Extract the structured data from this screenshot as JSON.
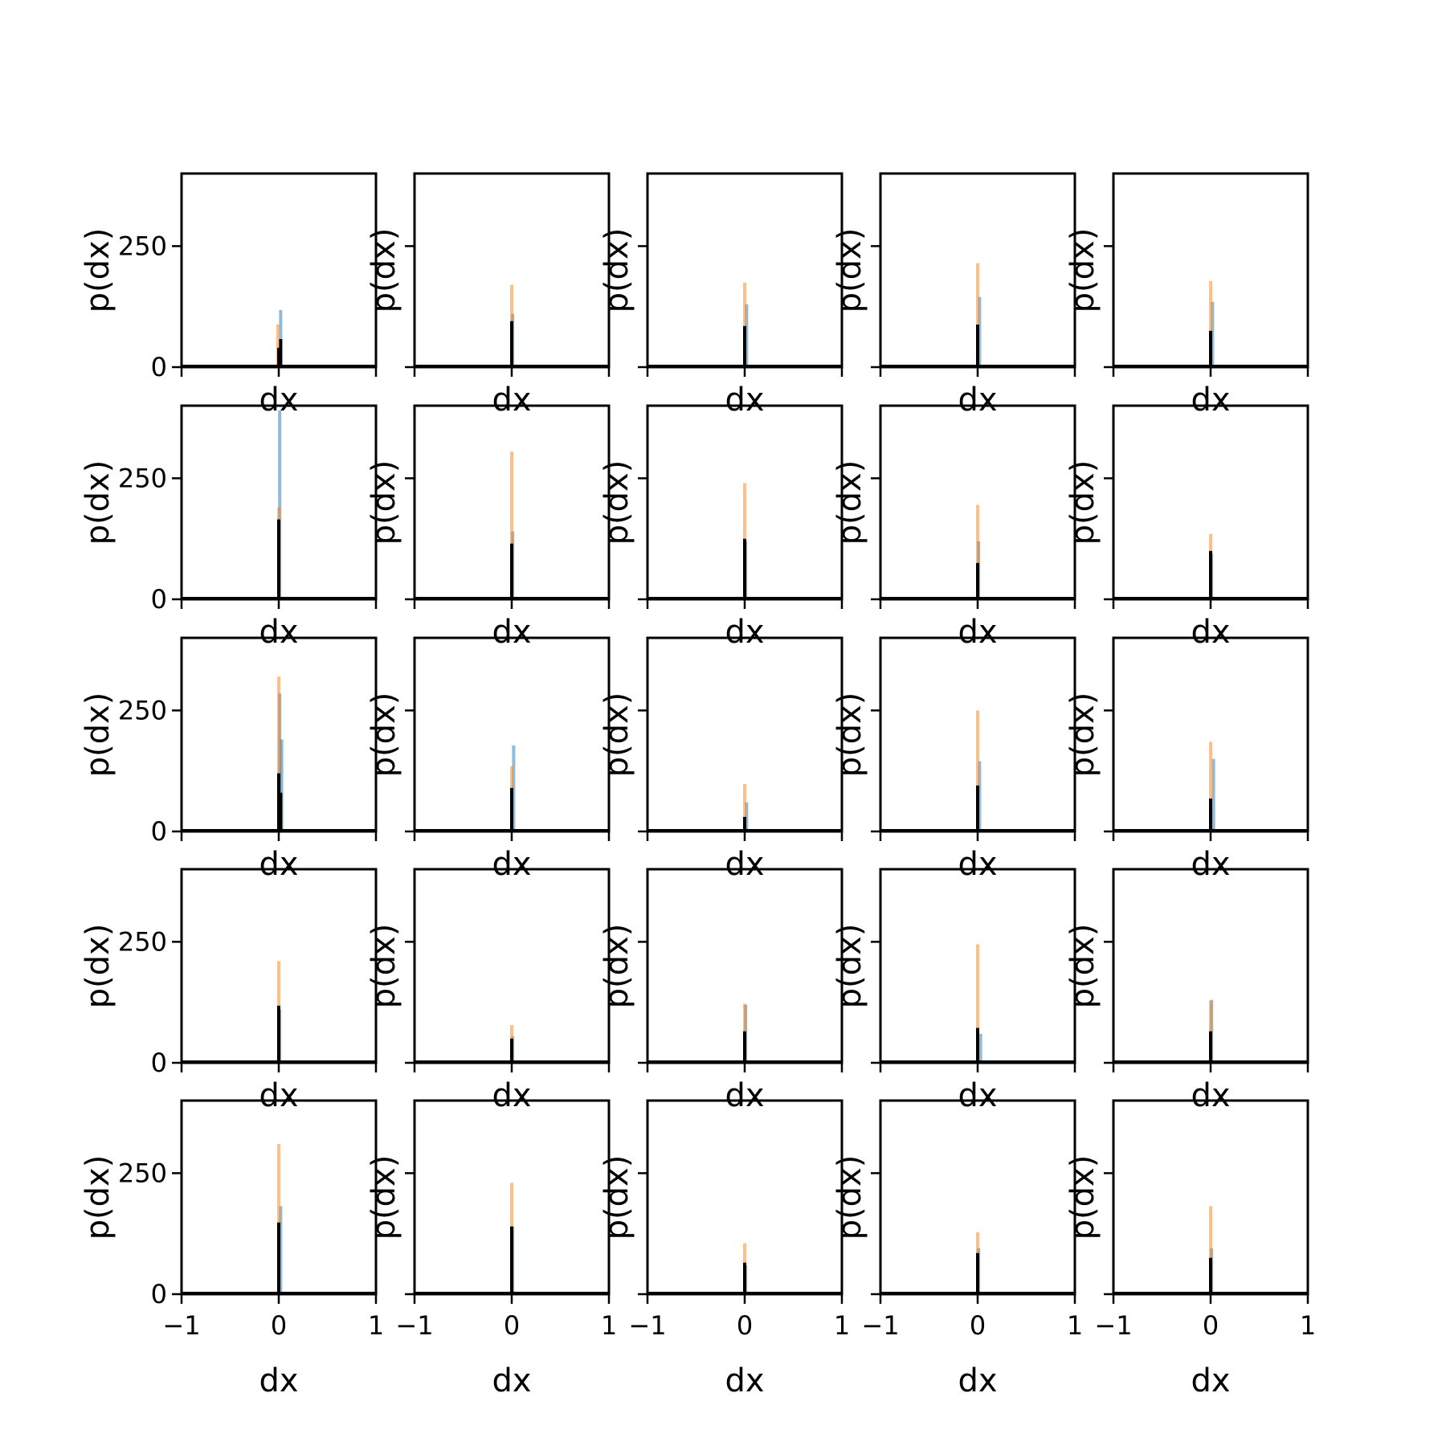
{
  "chart_data": {
    "type": "bar",
    "layout": "5x5 grid of histograms",
    "xlabel": "dx",
    "ylabel": "p(dx)",
    "xlim": [
      -1,
      1
    ],
    "ylim": [
      0,
      400
    ],
    "xticks": [
      -1,
      0,
      1
    ],
    "xtick_labels": [
      "−1",
      "0",
      "1"
    ],
    "yticks": [
      0,
      250
    ],
    "ytick_labels": [
      "0",
      "250"
    ],
    "colors": {
      "series_blue": "#1f77b4",
      "series_orange": "#ff7f0e",
      "series_black": "#000000"
    },
    "series_names": [
      "blue",
      "orange",
      "black"
    ],
    "panels": [
      {
        "row": 0,
        "col": 0,
        "blue": [
          [
            0.02,
            118
          ]
        ],
        "orange": [
          [
            -0.01,
            88
          ],
          [
            0.0,
            35
          ]
        ],
        "black": [
          [
            0.0,
            40
          ],
          [
            0.02,
            58
          ]
        ]
      },
      {
        "row": 0,
        "col": 1,
        "blue": [
          [
            0.01,
            110
          ]
        ],
        "orange": [
          [
            0.0,
            170
          ]
        ],
        "black": [
          [
            0.0,
            95
          ]
        ]
      },
      {
        "row": 0,
        "col": 2,
        "blue": [
          [
            0.02,
            130
          ]
        ],
        "orange": [
          [
            0.0,
            175
          ]
        ],
        "black": [
          [
            0.0,
            85
          ]
        ]
      },
      {
        "row": 0,
        "col": 3,
        "blue": [
          [
            0.02,
            145
          ]
        ],
        "orange": [
          [
            0.0,
            215
          ]
        ],
        "black": [
          [
            0.0,
            88
          ]
        ]
      },
      {
        "row": 0,
        "col": 4,
        "blue": [
          [
            0.02,
            135
          ]
        ],
        "orange": [
          [
            0.0,
            178
          ]
        ],
        "black": [
          [
            0.0,
            75
          ]
        ]
      },
      {
        "row": 1,
        "col": 0,
        "blue": [
          [
            0.01,
            390
          ]
        ],
        "orange": [
          [
            0.0,
            190
          ]
        ],
        "black": [
          [
            0.0,
            165
          ]
        ]
      },
      {
        "row": 1,
        "col": 1,
        "blue": [
          [
            0.01,
            140
          ]
        ],
        "orange": [
          [
            0.0,
            305
          ]
        ],
        "black": [
          [
            0.0,
            115
          ]
        ]
      },
      {
        "row": 1,
        "col": 2,
        "blue": [
          [
            0.01,
            120
          ]
        ],
        "orange": [
          [
            0.0,
            240
          ]
        ],
        "black": [
          [
            0.0,
            125
          ]
        ]
      },
      {
        "row": 1,
        "col": 3,
        "blue": [
          [
            0.01,
            120
          ]
        ],
        "orange": [
          [
            0.0,
            195
          ]
        ],
        "black": [
          [
            0.0,
            75
          ]
        ]
      },
      {
        "row": 1,
        "col": 4,
        "blue": [
          [
            0.01,
            95
          ]
        ],
        "orange": [
          [
            0.0,
            135
          ]
        ],
        "black": [
          [
            0.0,
            100
          ]
        ]
      },
      {
        "row": 2,
        "col": 0,
        "blue": [
          [
            0.01,
            285
          ],
          [
            0.03,
            190
          ]
        ],
        "orange": [
          [
            0.0,
            320
          ]
        ],
        "black": [
          [
            0.0,
            120
          ],
          [
            0.02,
            80
          ]
        ]
      },
      {
        "row": 2,
        "col": 1,
        "blue": [
          [
            0.02,
            178
          ]
        ],
        "orange": [
          [
            0.0,
            135
          ]
        ],
        "black": [
          [
            0.0,
            90
          ]
        ]
      },
      {
        "row": 2,
        "col": 2,
        "blue": [
          [
            0.02,
            60
          ]
        ],
        "orange": [
          [
            0.0,
            98
          ]
        ],
        "black": [
          [
            0.0,
            30
          ]
        ]
      },
      {
        "row": 2,
        "col": 3,
        "blue": [
          [
            0.02,
            145
          ]
        ],
        "orange": [
          [
            0.0,
            250
          ]
        ],
        "black": [
          [
            0.0,
            95
          ]
        ]
      },
      {
        "row": 2,
        "col": 4,
        "blue": [
          [
            0.03,
            150
          ]
        ],
        "orange": [
          [
            0.0,
            185
          ]
        ],
        "black": [
          [
            0.0,
            68
          ]
        ]
      },
      {
        "row": 3,
        "col": 0,
        "blue": [
          [
            0.01,
            110
          ]
        ],
        "orange": [
          [
            0.0,
            210
          ]
        ],
        "black": [
          [
            0.0,
            118
          ]
        ]
      },
      {
        "row": 3,
        "col": 1,
        "blue": [
          [
            0.01,
            55
          ]
        ],
        "orange": [
          [
            0.0,
            78
          ]
        ],
        "black": [
          [
            0.0,
            50
          ]
        ]
      },
      {
        "row": 3,
        "col": 2,
        "blue": [
          [
            0.01,
            120
          ]
        ],
        "orange": [
          [
            0.0,
            122
          ]
        ],
        "black": [
          [
            0.0,
            65
          ]
        ]
      },
      {
        "row": 3,
        "col": 3,
        "blue": [
          [
            0.03,
            60
          ]
        ],
        "orange": [
          [
            0.0,
            245
          ]
        ],
        "black": [
          [
            0.0,
            72
          ]
        ]
      },
      {
        "row": 3,
        "col": 4,
        "blue": [
          [
            0.01,
            130
          ]
        ],
        "orange": [
          [
            0.0,
            128
          ]
        ],
        "black": [
          [
            0.0,
            65
          ]
        ]
      },
      {
        "row": 4,
        "col": 0,
        "blue": [
          [
            0.02,
            182
          ]
        ],
        "orange": [
          [
            0.0,
            310
          ]
        ],
        "black": [
          [
            0.0,
            148
          ]
        ]
      },
      {
        "row": 4,
        "col": 1,
        "blue": [
          [
            0.01,
            140
          ]
        ],
        "orange": [
          [
            0.0,
            230
          ]
        ],
        "black": [
          [
            0.0,
            140
          ]
        ]
      },
      {
        "row": 4,
        "col": 2,
        "blue": [
          [
            0.01,
            60
          ]
        ],
        "orange": [
          [
            0.0,
            105
          ]
        ],
        "black": [
          [
            0.0,
            65
          ]
        ]
      },
      {
        "row": 4,
        "col": 3,
        "blue": [
          [
            0.01,
            95
          ]
        ],
        "orange": [
          [
            0.0,
            128
          ]
        ],
        "black": [
          [
            0.0,
            85
          ]
        ]
      },
      {
        "row": 4,
        "col": 4,
        "blue": [
          [
            0.01,
            95
          ]
        ],
        "orange": [
          [
            0.0,
            182
          ]
        ],
        "black": [
          [
            0.0,
            75
          ]
        ]
      }
    ]
  }
}
